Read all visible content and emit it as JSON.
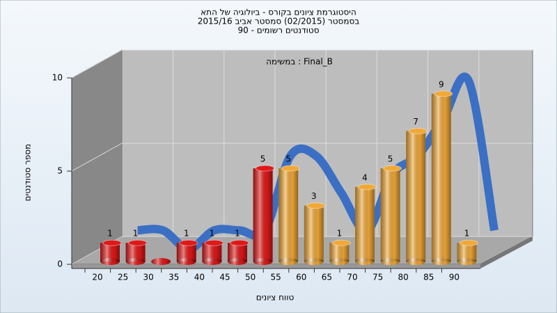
{
  "chart_data": {
    "type": "bar",
    "title": "היסטוגרמת ציונים בקורס - ביולוגיה של התא",
    "subtitle": "בסמסטר  (02/2015)  סמסטר אביב 2015/16",
    "subtitle2": "סטודנטים רשומים - 90",
    "annotation": "במשימה : Final_B",
    "x_label": "טווח ציונים",
    "y_label": "מספר סטודנטים",
    "categories": [
      "20",
      "25",
      "30",
      "35",
      "40",
      "45",
      "50",
      "55",
      "60",
      "65",
      "70",
      "75",
      "80",
      "85",
      "90"
    ],
    "values": [
      1,
      1,
      0,
      1,
      1,
      1,
      5,
      5,
      3,
      1,
      4,
      5,
      7,
      9,
      1
    ],
    "colors": [
      "#e01818",
      "#e01818",
      "#e01818",
      "#e01818",
      "#e01818",
      "#e01818",
      "#e01818",
      "#f0a838",
      "#f0a838",
      "#f0a838",
      "#f0a838",
      "#f0a838",
      "#f0a838",
      "#f0a838",
      "#f0a838"
    ],
    "trend_color": "#3a6fc4",
    "ylim": [
      0,
      10
    ],
    "yticks": [
      0,
      5,
      10
    ],
    "grid": true
  }
}
